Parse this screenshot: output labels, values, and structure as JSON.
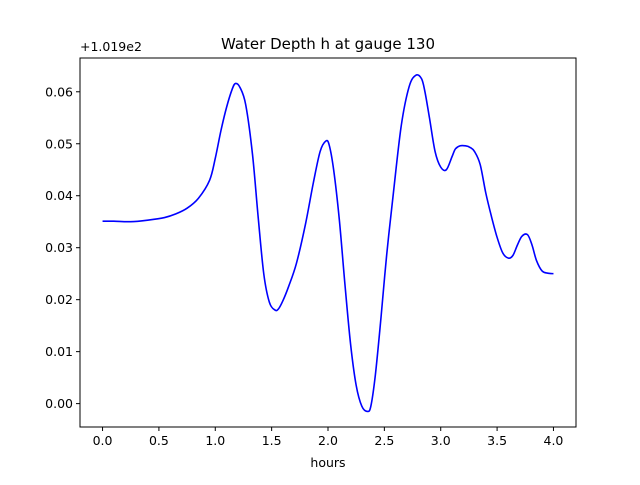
{
  "chart_data": {
    "type": "line",
    "title": "Water Depth h at gauge 130",
    "xlabel": "hours",
    "ylabel": "",
    "offset_text": "+1.019e2",
    "xlim": [
      -0.2,
      4.2
    ],
    "ylim": [
      -0.0045,
      0.0665
    ],
    "xticks": [
      0.0,
      0.5,
      1.0,
      1.5,
      2.0,
      2.5,
      3.0,
      3.5,
      4.0
    ],
    "xtick_labels": [
      "0.0",
      "0.5",
      "1.0",
      "1.5",
      "2.0",
      "2.5",
      "3.0",
      "3.5",
      "4.0"
    ],
    "yticks": [
      0.0,
      0.01,
      0.02,
      0.03,
      0.04,
      0.05,
      0.06
    ],
    "ytick_labels": [
      "0.00",
      "0.01",
      "0.02",
      "0.03",
      "0.04",
      "0.05",
      "0.06"
    ],
    "grid": false,
    "line_color": "#0000ff",
    "series": [
      {
        "x": [
          0.0,
          0.1,
          0.25,
          0.4,
          0.55,
          0.65,
          0.75,
          0.85,
          0.95,
          1.0,
          1.05,
          1.1,
          1.15,
          1.18,
          1.22,
          1.27,
          1.33,
          1.38,
          1.43,
          1.48,
          1.53,
          1.56,
          1.6,
          1.65,
          1.72,
          1.8,
          1.87,
          1.93,
          1.98,
          2.01,
          2.05,
          2.1,
          2.15,
          2.2,
          2.25,
          2.3,
          2.35,
          2.38,
          2.42,
          2.47,
          2.52,
          2.58,
          2.65,
          2.72,
          2.78,
          2.83,
          2.86,
          2.9,
          2.95,
          3.0,
          3.05,
          3.1,
          3.13,
          3.17,
          3.22,
          3.26,
          3.3,
          3.35,
          3.4,
          3.45,
          3.5,
          3.55,
          3.6,
          3.64,
          3.68,
          3.72,
          3.77,
          3.81,
          3.85,
          3.9,
          3.95,
          4.0
        ],
        "y": [
          0.0351,
          0.0351,
          0.035,
          0.0353,
          0.0358,
          0.0365,
          0.0376,
          0.0395,
          0.043,
          0.0472,
          0.0525,
          0.057,
          0.0605,
          0.0616,
          0.0608,
          0.0575,
          0.048,
          0.036,
          0.025,
          0.0195,
          0.018,
          0.0182,
          0.0198,
          0.0225,
          0.027,
          0.0345,
          0.0425,
          0.0485,
          0.0505,
          0.0498,
          0.045,
          0.0355,
          0.023,
          0.0115,
          0.0035,
          -0.0005,
          -0.0015,
          -0.0005,
          0.0055,
          0.0165,
          0.0285,
          0.0405,
          0.0535,
          0.061,
          0.0632,
          0.0625,
          0.06,
          0.055,
          0.0485,
          0.0455,
          0.045,
          0.0475,
          0.049,
          0.0496,
          0.0496,
          0.0493,
          0.0485,
          0.046,
          0.0405,
          0.036,
          0.032,
          0.029,
          0.028,
          0.0285,
          0.0305,
          0.0322,
          0.0325,
          0.0305,
          0.0275,
          0.0255,
          0.0251,
          0.025
        ]
      }
    ]
  }
}
